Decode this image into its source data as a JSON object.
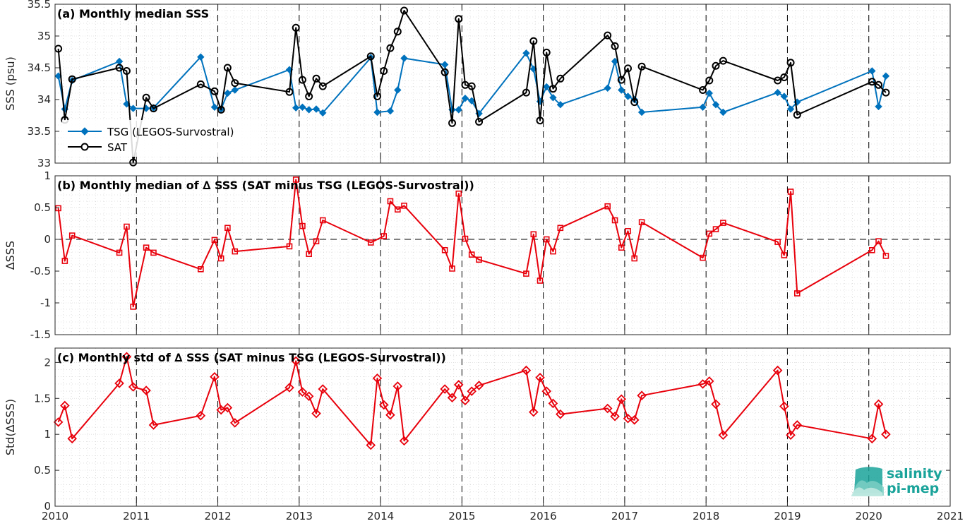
{
  "colors": {
    "tsg": "#0072BD",
    "sat": "#000000",
    "delta": "#E8000B",
    "logo": "#1aa39a"
  },
  "logo": {
    "line1": "salinity",
    "line2": "pi-mep"
  },
  "chart_data": [
    {
      "type": "line",
      "title": "(a) Monthly median SSS",
      "ylabel": "SSS (psu)",
      "xlim": [
        2010,
        2021
      ],
      "ylim": [
        33,
        35.5
      ],
      "yticks": [
        33,
        33.5,
        34,
        34.5,
        35,
        35.5
      ],
      "ytick_labels": [
        "33",
        "33.5",
        "34",
        "34.5",
        "35",
        "35.5"
      ],
      "xticks": [
        2010,
        2011,
        2012,
        2013,
        2014,
        2015,
        2016,
        2017,
        2018,
        2019,
        2020,
        2021
      ],
      "xtick_labels": [],
      "vlines": [
        2011,
        2012,
        2013,
        2014,
        2015,
        2016,
        2017,
        2018,
        2019,
        2020
      ],
      "grid": true,
      "legend": "bottom-left",
      "series": [
        {
          "name": "TSG (LEGOS-Survostral)",
          "marker": "diamond-filled",
          "x": [
            2010.04,
            2010.12,
            2010.21,
            2010.79,
            2010.88,
            2010.96,
            2011.12,
            2011.21,
            2011.79,
            2011.96,
            2012.04,
            2012.12,
            2012.21,
            2012.88,
            2012.96,
            2013.04,
            2013.12,
            2013.21,
            2013.29,
            2013.88,
            2013.96,
            2014.12,
            2014.21,
            2014.29,
            2014.79,
            2014.88,
            2014.96,
            2015.04,
            2015.12,
            2015.21,
            2015.79,
            2015.88,
            2015.96,
            2016.04,
            2016.12,
            2016.21,
            2016.79,
            2016.88,
            2016.96,
            2017.04,
            2017.12,
            2017.21,
            2017.96,
            2018.04,
            2018.12,
            2018.21,
            2018.88,
            2018.96,
            2019.04,
            2019.12,
            2020.04,
            2020.12,
            2020.21
          ],
          "y": [
            34.37,
            33.85,
            34.3,
            34.6,
            33.93,
            33.86,
            33.86,
            33.87,
            34.67,
            33.88,
            33.85,
            34.1,
            34.15,
            34.47,
            33.87,
            33.88,
            33.84,
            33.85,
            33.79,
            34.66,
            33.8,
            33.82,
            34.15,
            34.65,
            34.55,
            33.84,
            33.84,
            34.02,
            33.98,
            33.78,
            34.73,
            34.48,
            33.97,
            34.2,
            34.03,
            33.92,
            34.18,
            34.6,
            34.15,
            34.05,
            34.0,
            33.8,
            33.88,
            34.1,
            33.92,
            33.8,
            34.11,
            34.05,
            33.85,
            33.96,
            34.45,
            33.89,
            34.37
          ]
        },
        {
          "name": "SAT",
          "marker": "circle-open",
          "x": [
            2010.04,
            2010.12,
            2010.21,
            2010.79,
            2010.88,
            2010.96,
            2011.12,
            2011.21,
            2011.79,
            2011.96,
            2012.04,
            2012.12,
            2012.21,
            2012.88,
            2012.96,
            2013.04,
            2013.12,
            2013.21,
            2013.29,
            2013.88,
            2013.96,
            2014.04,
            2014.12,
            2014.21,
            2014.29,
            2014.79,
            2014.88,
            2014.96,
            2015.04,
            2015.12,
            2015.21,
            2015.79,
            2015.88,
            2015.96,
            2016.04,
            2016.12,
            2016.21,
            2016.79,
            2016.88,
            2016.96,
            2017.04,
            2017.12,
            2017.21,
            2017.96,
            2018.04,
            2018.12,
            2018.21,
            2018.88,
            2018.96,
            2019.04,
            2019.12,
            2020.04,
            2020.12,
            2020.21
          ],
          "y": [
            34.8,
            33.68,
            34.32,
            34.5,
            34.45,
            33.01,
            34.03,
            33.86,
            34.24,
            34.13,
            33.84,
            34.5,
            34.26,
            34.12,
            35.13,
            34.31,
            34.05,
            34.33,
            34.21,
            34.68,
            34.05,
            34.45,
            34.81,
            35.07,
            35.4,
            34.43,
            33.63,
            35.27,
            34.23,
            34.21,
            33.65,
            34.11,
            34.92,
            33.67,
            34.74,
            34.17,
            34.33,
            35.01,
            34.84,
            34.31,
            34.49,
            33.96,
            34.52,
            34.15,
            34.3,
            34.53,
            34.61,
            34.3,
            34.35,
            34.58,
            33.76,
            34.28,
            34.23,
            34.11
          ]
        }
      ]
    },
    {
      "type": "line",
      "title": "(b) Monthly median of ∆ SSS (SAT minus TSG (LEGOS-Survostral))",
      "ylabel": "∆SSS",
      "xlim": [
        2010,
        2021
      ],
      "ylim": [
        -1.5,
        1
      ],
      "yticks": [
        -1.5,
        -1,
        -0.5,
        0,
        0.5,
        1
      ],
      "ytick_labels": [
        "-1.5",
        "-1",
        "-0.5",
        "0",
        "0.5",
        "1"
      ],
      "xticks": [
        2010,
        2011,
        2012,
        2013,
        2014,
        2015,
        2016,
        2017,
        2018,
        2019,
        2020,
        2021
      ],
      "xtick_labels": [],
      "vlines": [
        2011,
        2012,
        2013,
        2014,
        2015,
        2016,
        2017,
        2018,
        2019,
        2020
      ],
      "hline": 0,
      "grid": true,
      "series": [
        {
          "marker": "square-open",
          "x": [
            2010.04,
            2010.12,
            2010.21,
            2010.79,
            2010.88,
            2010.96,
            2011.12,
            2011.21,
            2011.79,
            2011.96,
            2012.04,
            2012.12,
            2012.21,
            2012.88,
            2012.96,
            2013.04,
            2013.12,
            2013.21,
            2013.29,
            2013.88,
            2014.04,
            2014.12,
            2014.21,
            2014.29,
            2014.79,
            2014.88,
            2014.96,
            2015.04,
            2015.12,
            2015.21,
            2015.79,
            2015.88,
            2015.96,
            2016.04,
            2016.12,
            2016.21,
            2016.79,
            2016.88,
            2016.96,
            2017.04,
            2017.12,
            2017.21,
            2017.96,
            2018.04,
            2018.12,
            2018.21,
            2018.88,
            2018.96,
            2019.04,
            2019.12,
            2020.04,
            2020.12,
            2020.21
          ],
          "y": [
            0.49,
            -0.34,
            0.06,
            -0.21,
            0.2,
            -1.06,
            -0.13,
            -0.21,
            -0.47,
            -0.01,
            -0.3,
            0.18,
            -0.19,
            -0.11,
            0.94,
            0.21,
            -0.23,
            -0.03,
            0.3,
            -0.05,
            0.05,
            0.6,
            0.47,
            0.53,
            -0.17,
            -0.46,
            0.72,
            0.01,
            -0.24,
            -0.32,
            -0.54,
            0.08,
            -0.65,
            0.0,
            -0.19,
            0.18,
            0.52,
            0.3,
            -0.13,
            0.13,
            -0.3,
            0.27,
            -0.29,
            0.09,
            0.16,
            0.26,
            -0.04,
            -0.25,
            0.75,
            -0.85,
            -0.17,
            -0.03,
            -0.26
          ]
        }
      ]
    },
    {
      "type": "line",
      "title": "(c) Monthly std of ∆ SSS (SAT minus TSG (LEGOS-Survostral))",
      "ylabel": "Std(∆SSS)",
      "xlim": [
        2010,
        2021
      ],
      "ylim": [
        0,
        2.2
      ],
      "yticks": [
        0,
        0.5,
        1,
        1.5,
        2
      ],
      "ytick_labels": [
        "0",
        "0.5",
        "1",
        "1.5",
        "2"
      ],
      "xticks": [
        2010,
        2011,
        2012,
        2013,
        2014,
        2015,
        2016,
        2017,
        2018,
        2019,
        2020,
        2021
      ],
      "xtick_labels": [
        "2010",
        "2011",
        "2012",
        "2013",
        "2014",
        "2015",
        "2016",
        "2017",
        "2018",
        "2019",
        "2020",
        "2021"
      ],
      "vlines": [
        2011,
        2012,
        2013,
        2014,
        2015,
        2016,
        2017,
        2018,
        2019,
        2020
      ],
      "grid": true,
      "series": [
        {
          "marker": "diamond-open",
          "x": [
            2010.04,
            2010.12,
            2010.21,
            2010.79,
            2010.88,
            2010.96,
            2011.12,
            2011.21,
            2011.79,
            2011.96,
            2012.04,
            2012.12,
            2012.21,
            2012.88,
            2012.96,
            2013.04,
            2013.12,
            2013.21,
            2013.29,
            2013.88,
            2013.96,
            2014.04,
            2014.12,
            2014.21,
            2014.29,
            2014.79,
            2014.88,
            2014.96,
            2015.04,
            2015.12,
            2015.21,
            2015.79,
            2015.88,
            2015.96,
            2016.04,
            2016.12,
            2016.21,
            2016.79,
            2016.88,
            2016.96,
            2017.04,
            2017.12,
            2017.21,
            2017.96,
            2018.04,
            2018.12,
            2018.21,
            2018.88,
            2018.96,
            2019.04,
            2019.12,
            2020.04,
            2020.12,
            2020.21
          ],
          "y": [
            1.17,
            1.4,
            0.94,
            1.71,
            2.08,
            1.66,
            1.61,
            1.13,
            1.26,
            1.8,
            1.34,
            1.37,
            1.16,
            1.65,
            2.02,
            1.59,
            1.53,
            1.29,
            1.63,
            0.85,
            1.78,
            1.41,
            1.27,
            1.67,
            0.91,
            1.63,
            1.51,
            1.69,
            1.47,
            1.6,
            1.68,
            1.89,
            1.31,
            1.79,
            1.6,
            1.43,
            1.28,
            1.36,
            1.25,
            1.49,
            1.22,
            1.2,
            1.54,
            1.7,
            1.74,
            1.42,
            0.99,
            1.89,
            1.39,
            0.99,
            1.13,
            0.94,
            1.42,
            1.0
          ]
        }
      ]
    }
  ]
}
